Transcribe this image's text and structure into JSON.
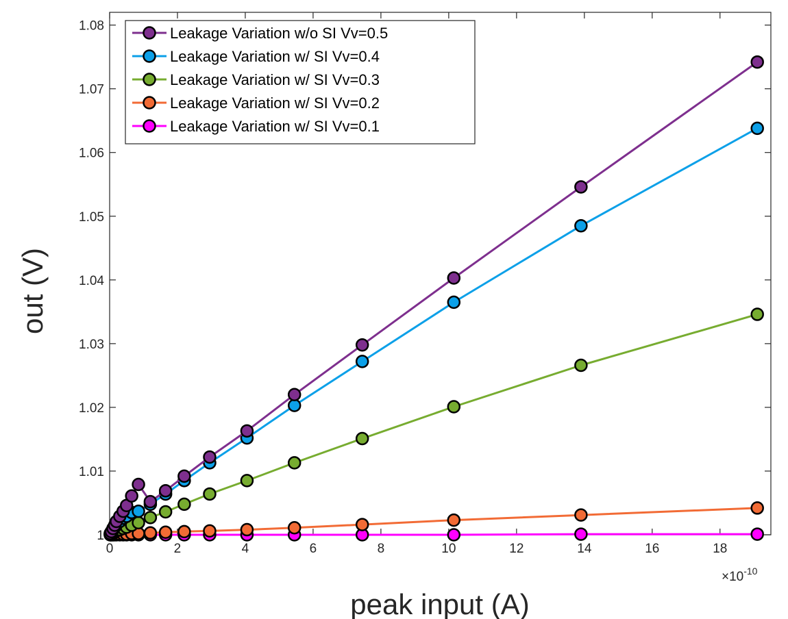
{
  "chart_data": {
    "type": "line",
    "title": "",
    "xlabel": "peak input (A)",
    "ylabel": "out (V)",
    "x_exponent_label": "×10",
    "x_exponent_power": "-10",
    "xlim": [
      0,
      19.5
    ],
    "ylim": [
      1.0,
      1.082
    ],
    "xticks": [
      0,
      2,
      4,
      6,
      8,
      10,
      12,
      14,
      16,
      18
    ],
    "xtick_labels": [
      "0",
      "2",
      "4",
      "6",
      "8",
      "10",
      "12",
      "14",
      "16",
      "18"
    ],
    "yticks": [
      1.0,
      1.01,
      1.02,
      1.03,
      1.04,
      1.05,
      1.06,
      1.07,
      1.08
    ],
    "ytick_labels": [
      "1",
      "1.01",
      "1.02",
      "1.03",
      "1.04",
      "1.05",
      "1.06",
      "1.07",
      "1.08"
    ],
    "grid": false,
    "legend_position": "top-left",
    "x": [
      0.02,
      0.05,
      0.1,
      0.15,
      0.2,
      0.3,
      0.4,
      0.5,
      0.65,
      0.85,
      1.2,
      1.65,
      2.2,
      2.95,
      4.05,
      5.45,
      7.45,
      10.15,
      13.9,
      19.1
    ],
    "series": [
      {
        "name": "Leakage Variation w/o SI Vv=0.5",
        "color": "#7E2F8E",
        "values": [
          1.0002,
          1.0005,
          1.001,
          1.0015,
          1.0021,
          1.0029,
          1.0037,
          1.0046,
          1.0061,
          1.0079,
          1.0052,
          1.0069,
          1.0092,
          1.0122,
          1.0163,
          1.022,
          1.0298,
          1.0403,
          1.0546,
          1.0742
        ]
      },
      {
        "name": "Leakage Variation w/ SI Vv=0.4",
        "color": "#0CA0E8",
        "values": [
          1.0002,
          1.0004,
          1.0008,
          1.0012,
          1.0016,
          1.0021,
          1.0026,
          1.0029,
          1.0035,
          1.0037,
          1.0048,
          1.0064,
          1.0085,
          1.0113,
          1.0152,
          1.0203,
          1.0272,
          1.0365,
          1.0485,
          1.0638
        ]
      },
      {
        "name": "Leakage Variation w/ SI Vv=0.3",
        "color": "#77AC30",
        "values": [
          1.0001,
          1.0002,
          1.0003,
          1.0004,
          1.0006,
          1.0008,
          1.001,
          1.0012,
          1.0015,
          1.0019,
          1.0027,
          1.0036,
          1.0048,
          1.0064,
          1.0085,
          1.0113,
          1.0151,
          1.0201,
          1.0266,
          1.0346
        ]
      },
      {
        "name": "Leakage Variation w/ SI Vv=0.2",
        "color": "#F26B35",
        "values": [
          1.0,
          1.0,
          1.0,
          1.0001,
          1.0001,
          1.0001,
          1.0001,
          1.0001,
          1.0002,
          1.0002,
          1.0003,
          1.0004,
          1.0005,
          1.0006,
          1.0008,
          1.0011,
          1.0016,
          1.0023,
          1.0031,
          1.0042
        ]
      },
      {
        "name": "Leakage Variation w/ SI Vv=0.1",
        "color": "#FF00FF",
        "values": [
          1.0,
          1.0,
          1.0,
          1.0,
          1.0,
          1.0,
          1.0,
          1.0,
          1.0,
          1.0,
          1.0,
          1.0,
          1.0,
          1.0,
          1.0,
          1.0,
          1.0,
          1.0,
          1.0001,
          1.0001
        ]
      }
    ]
  }
}
